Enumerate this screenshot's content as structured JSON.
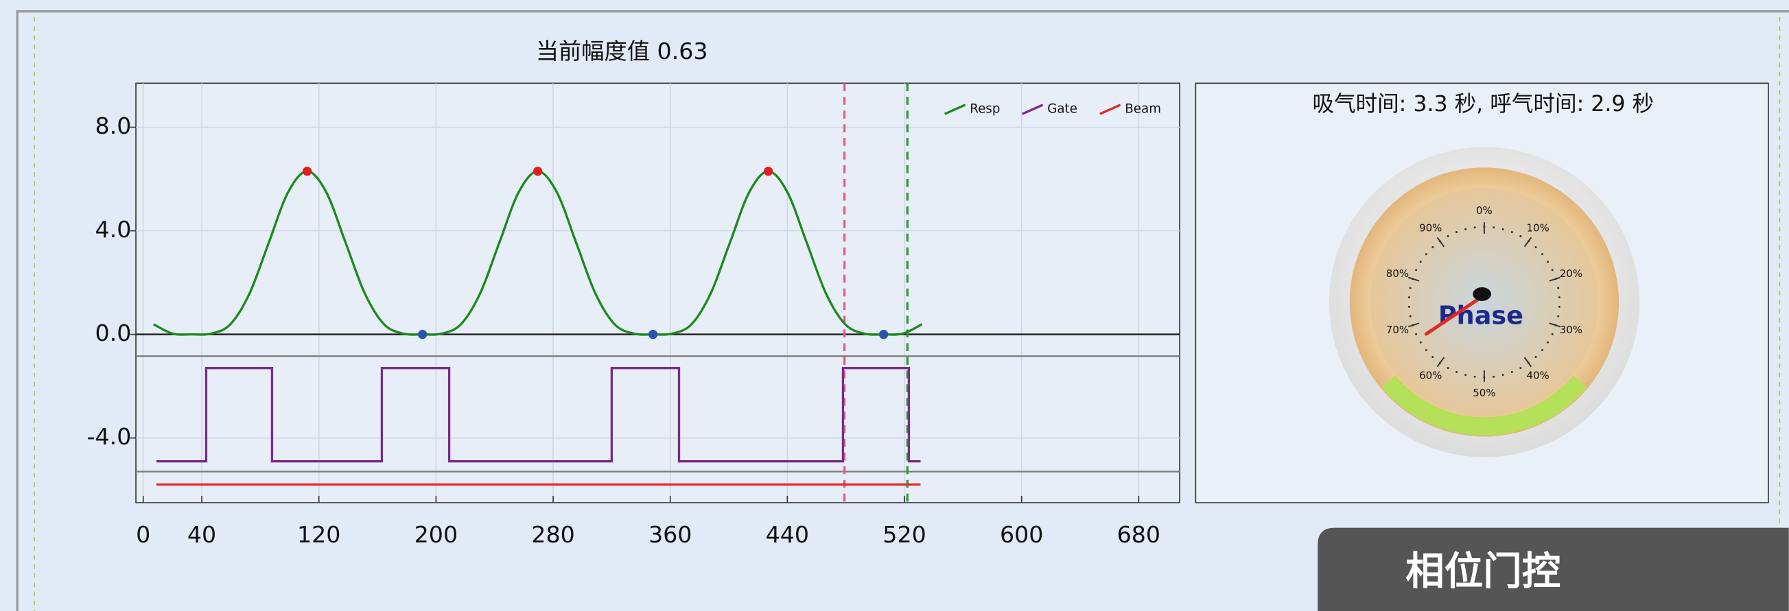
{
  "chart_data": [
    {
      "type": "line",
      "title": "当前幅度值 0.63",
      "xlim": [
        -5,
        708
      ],
      "xticks": [
        0,
        40,
        120,
        200,
        280,
        360,
        440,
        520,
        600,
        680
      ],
      "ylim": [
        -6.5,
        9.7
      ],
      "yticks": [
        {
          "value": 8,
          "label": "8.0"
        },
        {
          "value": 4,
          "label": "4.0"
        },
        {
          "value": 0,
          "label": "0.0"
        },
        {
          "value": -4,
          "label": "-4.0"
        }
      ],
      "grid": true,
      "legend": "upper right",
      "series": [
        {
          "name": "Resp",
          "color": "#1a8a1a",
          "x": [
            7,
            20.125,
            33.25,
            46.375,
            59.5,
            72.625,
            85.75,
            98.875,
            112,
            125.125,
            138.25,
            151.375,
            164.5,
            177.625,
            190.75,
            203.875,
            217,
            230.125,
            243.25,
            256.375,
            269.5,
            282.625,
            295.75,
            308.875,
            322,
            335.125,
            348.25,
            361.375,
            374.5,
            387.625,
            400.75,
            413.875,
            427,
            440.125,
            453.25,
            466.375,
            479.5,
            492.625,
            505.75,
            518.875,
            532
          ],
          "values": [
            0.39,
            0.03,
            0,
            0.03,
            0.39,
            1.58,
            3.54,
            5.48,
            6.3,
            5.48,
            3.54,
            1.58,
            0.39,
            0.03,
            0,
            0.03,
            0.39,
            1.58,
            3.54,
            5.48,
            6.3,
            5.48,
            3.54,
            1.58,
            0.39,
            0.03,
            0,
            0.03,
            0.39,
            1.58,
            3.54,
            5.48,
            6.3,
            5.48,
            3.54,
            1.58,
            0.39,
            0.03,
            0,
            0.03,
            0.39
          ]
        },
        {
          "name": "Gate",
          "color": "#7a2a8a",
          "x": [
            9,
            43,
            43,
            88,
            88,
            163,
            163,
            209,
            209,
            320,
            320,
            366,
            366,
            478,
            478,
            523,
            523,
            531
          ],
          "values": [
            -4.9,
            -4.9,
            -1.3,
            -1.3,
            -4.9,
            -4.9,
            -1.3,
            -1.3,
            -4.9,
            -4.9,
            -1.3,
            -1.3,
            -4.9,
            -4.9,
            -1.3,
            -1.3,
            -4.9,
            -4.9
          ]
        },
        {
          "name": "Beam",
          "color": "#e02828",
          "x": [
            9,
            531
          ],
          "values": [
            -5.8,
            -5.8
          ]
        }
      ],
      "points": [
        {
          "color": "#e02020",
          "x": [
            112,
            269.5,
            427
          ],
          "values": [
            6.3,
            6.3,
            6.3
          ]
        },
        {
          "color": "#2a52b0",
          "x": [
            190.75,
            348.25,
            505.75
          ],
          "values": [
            0,
            0,
            0
          ]
        }
      ],
      "vlines": [
        {
          "x": 479,
          "color": "#e0608a"
        },
        {
          "x": 522,
          "color": "#2aa02a"
        }
      ],
      "hlines": [
        {
          "y": 0,
          "color": "#222222"
        },
        {
          "y": -0.84,
          "color": "#808080"
        },
        {
          "y": -5.3,
          "color": "#808080"
        }
      ]
    },
    {
      "type": "gauge",
      "title": "吸气时间: 3.3 秒, 呼气时间: 2.9 秒",
      "label": "Phase",
      "value": 67,
      "range": [
        0,
        100
      ],
      "ticks": [
        {
          "value": 0,
          "label": "0%"
        },
        {
          "value": 10,
          "label": "10%"
        },
        {
          "value": 20,
          "label": "20%"
        },
        {
          "value": 30,
          "label": "30%"
        },
        {
          "value": 40,
          "label": "40%"
        },
        {
          "value": 50,
          "label": "50%"
        },
        {
          "value": 60,
          "label": "60%"
        },
        {
          "value": 70,
          "label": "70%"
        },
        {
          "value": 80,
          "label": "80%"
        },
        {
          "value": 90,
          "label": "90%"
        }
      ],
      "band": [
        36,
        64
      ],
      "band_color": "#b5e05a",
      "needle_color": "#e02828"
    }
  ],
  "button": "相位门控"
}
